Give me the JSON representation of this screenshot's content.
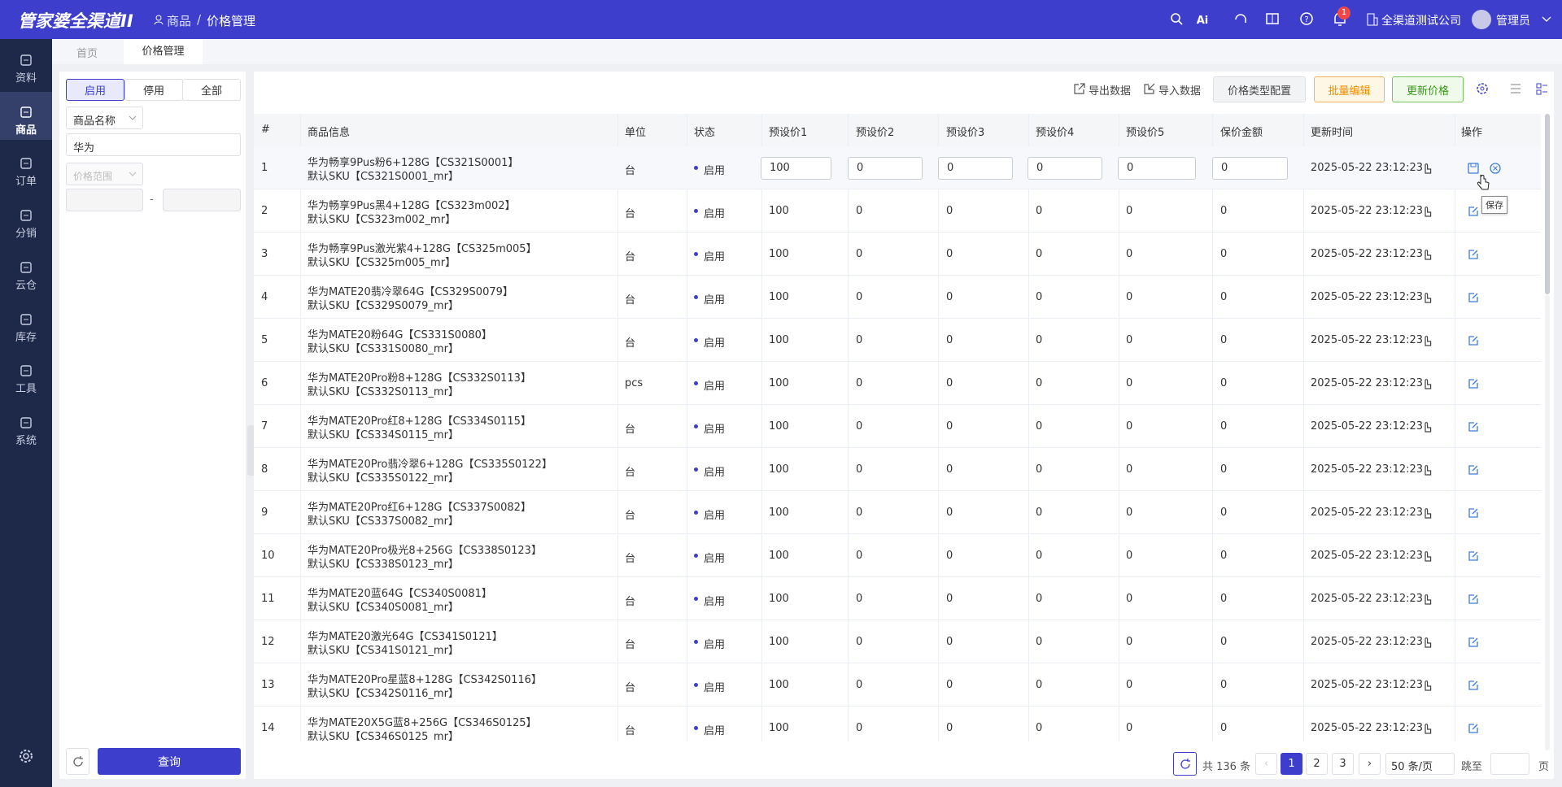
{
  "header": {
    "logo": "管家婆全渠道II",
    "breadcrumb": [
      "商品",
      "价格管理"
    ],
    "notification_count": "1",
    "company": "全渠道测试公司",
    "user": "管理员"
  },
  "sidebar": [
    "资料",
    "商品",
    "订单",
    "分销",
    "云仓",
    "库存",
    "工具",
    "系统"
  ],
  "tabs": [
    "首页",
    "价格管理"
  ],
  "filters": {
    "status_tabs": [
      "启用",
      "停用",
      "全部"
    ],
    "field_select": "商品名称",
    "keyword": "华为",
    "price_range": "价格范围",
    "range_separator": "-",
    "query_button": "查询"
  },
  "toolbar": [
    "导出数据",
    "导入数据",
    "价格类型配置",
    "批量编辑",
    "更新价格"
  ],
  "table": {
    "columns": [
      "#",
      "商品信息",
      "单位",
      "状态",
      "预设价1",
      "预设价2",
      "预设价3",
      "预设价4",
      "预设价5",
      "保价金额",
      "更新时间",
      "操作"
    ],
    "rows": [
      [
        "1",
        "华为畅享9Pus粉6+128G【CS321S0001】",
        "默认SKU【CS321S0001_mr】",
        "台",
        "启用",
        "100",
        "0",
        "0",
        "0",
        "0",
        "0",
        "2025-05-22 23:12:23"
      ],
      [
        "2",
        "华为畅享9Pus黑4+128G【CS323m002】",
        "默认SKU【CS323m002_mr】",
        "台",
        "启用",
        "100",
        "0",
        "0",
        "0",
        "0",
        "0",
        "2025-05-22 23:12:23"
      ],
      [
        "3",
        "华为畅享9Pus激光紫4+128G【CS325m005】",
        "默认SKU【CS325m005_mr】",
        "台",
        "启用",
        "100",
        "0",
        "0",
        "0",
        "0",
        "0",
        "2025-05-22 23:12:23"
      ],
      [
        "4",
        "华为MATE20翡冷翠64G【CS329S0079】",
        "默认SKU【CS329S0079_mr】",
        "台",
        "启用",
        "100",
        "0",
        "0",
        "0",
        "0",
        "0",
        "2025-05-22 23:12:23"
      ],
      [
        "5",
        "华为MATE20粉64G【CS331S0080】",
        "默认SKU【CS331S0080_mr】",
        "台",
        "启用",
        "100",
        "0",
        "0",
        "0",
        "0",
        "0",
        "2025-05-22 23:12:23"
      ],
      [
        "6",
        "华为MATE20Pro粉8+128G【CS332S0113】",
        "默认SKU【CS332S0113_mr】",
        "pcs",
        "启用",
        "100",
        "0",
        "0",
        "0",
        "0",
        "0",
        "2025-05-22 23:12:23"
      ],
      [
        "7",
        "华为MATE20Pro红8+128G【CS334S0115】",
        "默认SKU【CS334S0115_mr】",
        "台",
        "启用",
        "100",
        "0",
        "0",
        "0",
        "0",
        "0",
        "2025-05-22 23:12:23"
      ],
      [
        "8",
        "华为MATE20Pro翡冷翠6+128G【CS335S0122】",
        "默认SKU【CS335S0122_mr】",
        "台",
        "启用",
        "100",
        "0",
        "0",
        "0",
        "0",
        "0",
        "2025-05-22 23:12:23"
      ],
      [
        "9",
        "华为MATE20Pro红6+128G【CS337S0082】",
        "默认SKU【CS337S0082_mr】",
        "台",
        "启用",
        "100",
        "0",
        "0",
        "0",
        "0",
        "0",
        "2025-05-22 23:12:23"
      ],
      [
        "10",
        "华为MATE20Pro极光8+256G【CS338S0123】",
        "默认SKU【CS338S0123_mr】",
        "台",
        "启用",
        "100",
        "0",
        "0",
        "0",
        "0",
        "0",
        "2025-05-22 23:12:23"
      ],
      [
        "11",
        "华为MATE20蓝64G【CS340S0081】",
        "默认SKU【CS340S0081_mr】",
        "台",
        "启用",
        "100",
        "0",
        "0",
        "0",
        "0",
        "0",
        "2025-05-22 23:12:23"
      ],
      [
        "12",
        "华为MATE20激光64G【CS341S0121】",
        "默认SKU【CS341S0121_mr】",
        "台",
        "启用",
        "100",
        "0",
        "0",
        "0",
        "0",
        "0",
        "2025-05-22 23:12:23"
      ],
      [
        "13",
        "华为MATE20Pro星蓝8+128G【CS342S0116】",
        "默认SKU【CS342S0116_mr】",
        "台",
        "启用",
        "100",
        "0",
        "0",
        "0",
        "0",
        "0",
        "2025-05-22 23:12:23"
      ],
      [
        "14",
        "华为MATE20X5G蓝8+256G【CS346S0125】",
        "默认SKU【CS346S0125_mr】",
        "台",
        "启用",
        "100",
        "0",
        "0",
        "0",
        "0",
        "0",
        "2025-05-22 23:12:23"
      ]
    ]
  },
  "tooltip": "保存",
  "pagination": {
    "total": "共 136 条",
    "pages": [
      "1",
      "2",
      "3"
    ],
    "page_size": "50 条/页",
    "jump": "跳至",
    "page_unit": "页"
  }
}
